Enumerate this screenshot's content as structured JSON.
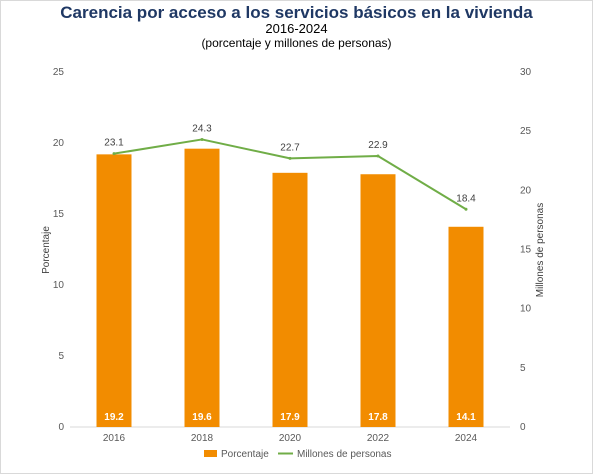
{
  "chart_data": {
    "type": "bar",
    "title": "Carencia por acceso a los servicios básicos en la vivienda",
    "subtitle": "2016-2024",
    "subtitle2": "(porcentaje y millones de personas)",
    "categories": [
      "2016",
      "2018",
      "2020",
      "2022",
      "2024"
    ],
    "series": [
      {
        "name": "Porcentaje",
        "type": "bar",
        "axis": "left",
        "color": "#f28c00",
        "values": [
          19.2,
          19.6,
          17.9,
          17.8,
          14.1
        ],
        "labels": [
          "19.2",
          "19.6",
          "17.9",
          "17.8",
          "14.1"
        ]
      },
      {
        "name": "Millones de personas",
        "type": "line",
        "axis": "right",
        "color": "#70ad47",
        "values": [
          23.1,
          24.3,
          22.7,
          22.9,
          18.4
        ],
        "labels": [
          "23.1",
          "24.3",
          "22.7",
          "22.9",
          "18.4"
        ]
      }
    ],
    "ylabel": "Porcentaje",
    "y2label": "Millones de personas",
    "ylim": [
      0,
      25
    ],
    "y2lim": [
      0,
      30
    ],
    "yticks": [
      "0",
      "5",
      "10",
      "15",
      "20",
      "25"
    ],
    "y2ticks": [
      "0",
      "5",
      "10",
      "15",
      "20",
      "25",
      "30"
    ],
    "grid": false,
    "legend": "bottom"
  }
}
